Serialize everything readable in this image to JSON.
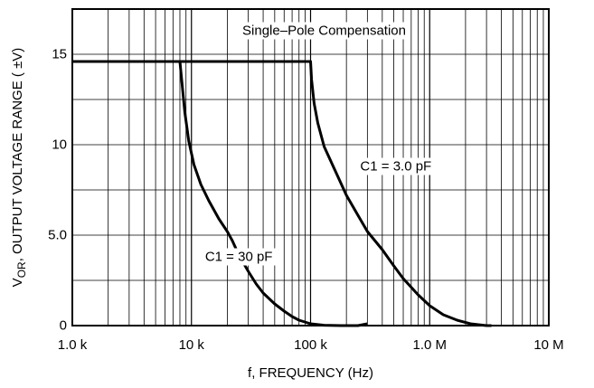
{
  "chart_data": {
    "type": "line",
    "title": "",
    "xlabel": "f, FREQUENCY (Hz)",
    "ylabel_sub": "OR",
    "ylabel_prefix": "V",
    "ylabel_rest": ", OUTPUT VOLTAGE RANGE ( ±V)",
    "x_scale": "log",
    "xlim": [
      1000,
      10000000
    ],
    "ylim": [
      0,
      17.5
    ],
    "x_ticks": [
      {
        "value": 1000,
        "label": "1.0 k"
      },
      {
        "value": 10000,
        "label": "10 k"
      },
      {
        "value": 100000,
        "label": "100 k"
      },
      {
        "value": 1000000,
        "label": "1.0 M"
      },
      {
        "value": 10000000,
        "label": "10 M"
      }
    ],
    "y_ticks": [
      {
        "value": 0,
        "label": "0"
      },
      {
        "value": 5,
        "label": "5.0"
      },
      {
        "value": 10,
        "label": "10"
      },
      {
        "value": 15,
        "label": "15"
      }
    ],
    "grid": true,
    "annotations": [
      {
        "text": "Single–Pole Compensation",
        "x": 130000,
        "y": 16.3
      },
      {
        "text": "C1 = 3.0 pF",
        "x": 520000,
        "y": 8.8
      },
      {
        "text": "C1 = 30 pF",
        "x": 25000,
        "y": 3.8
      }
    ],
    "series": [
      {
        "name": "C1 = 30 pF",
        "x": [
          1000,
          8000,
          8300,
          8800,
          9500,
          10500,
          12000,
          14000,
          17000,
          20000,
          22000,
          25000,
          30000,
          35000,
          40000,
          50000,
          60000,
          70000,
          80000,
          100000,
          130000,
          180000,
          250000,
          300000
        ],
        "y": [
          14.6,
          14.6,
          13.5,
          11.8,
          10.2,
          8.9,
          7.8,
          6.9,
          5.9,
          5.2,
          4.7,
          3.9,
          3.0,
          2.3,
          1.8,
          1.2,
          0.8,
          0.5,
          0.3,
          0.1,
          0.02,
          0,
          0,
          0.1
        ]
      },
      {
        "name": "C1 = 3.0 pF",
        "x": [
          1000,
          100000,
          102000,
          107000,
          115000,
          130000,
          160000,
          200000,
          250000,
          300000,
          400000,
          500000,
          600000,
          800000,
          1000000,
          1300000,
          1700000,
          2200000,
          3000000,
          3300000
        ],
        "y": [
          14.6,
          14.6,
          13.6,
          12.3,
          11.2,
          9.9,
          8.6,
          7.2,
          6.1,
          5.2,
          4.2,
          3.3,
          2.6,
          1.7,
          1.1,
          0.6,
          0.3,
          0.1,
          0,
          0
        ]
      }
    ]
  }
}
